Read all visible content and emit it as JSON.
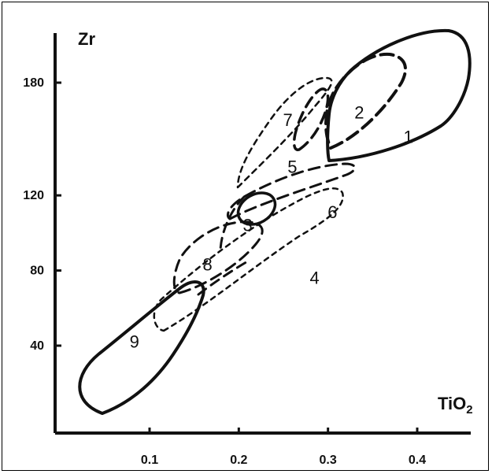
{
  "chart_data": {
    "type": "diagram",
    "xlabel": "TiO2",
    "ylabel": "Zr",
    "xlim": [
      0,
      0.45
    ],
    "ylim": [
      0,
      200
    ],
    "x_ticks": [
      {
        "value": 0.1,
        "label": "0.1"
      },
      {
        "value": 0.2,
        "label": "0.2"
      },
      {
        "value": 0.3,
        "label": "0.3"
      },
      {
        "value": 0.4,
        "label": "0.4"
      }
    ],
    "y_ticks": [
      {
        "value": 40,
        "label": "40"
      },
      {
        "value": 80,
        "label": "80"
      },
      {
        "value": 120,
        "label": "120"
      },
      {
        "value": 180,
        "label": "180"
      }
    ],
    "fields": [
      {
        "id": "1",
        "label": "1",
        "line_style": "solid",
        "label_at": [
          0.39,
          148
        ]
      },
      {
        "id": "2",
        "label": "2",
        "line_style": "long-dash",
        "label_at": [
          0.335,
          161
        ]
      },
      {
        "id": "3",
        "label": "3",
        "line_style": "solid",
        "label_at": [
          0.21,
          101
        ]
      },
      {
        "id": "4",
        "label": "4",
        "line_style": "short-dash",
        "label_at": [
          0.285,
          73
        ]
      },
      {
        "id": "5",
        "label": "5",
        "line_style": "long-dash",
        "label_at": [
          0.26,
          132
        ]
      },
      {
        "id": "6",
        "label": "6",
        "line_style": "long-dash",
        "label_at": [
          0.305,
          108
        ]
      },
      {
        "id": "7",
        "label": "7",
        "line_style": "short-dash",
        "label_at": [
          0.255,
          157
        ]
      },
      {
        "id": "8",
        "label": "8",
        "line_style": "long-dash",
        "label_at": [
          0.165,
          80
        ]
      },
      {
        "id": "9",
        "label": "9",
        "line_style": "solid",
        "label_at": [
          0.083,
          39
        ]
      }
    ]
  },
  "styles": {
    "ink": "#111111",
    "background": "#ffffff"
  }
}
